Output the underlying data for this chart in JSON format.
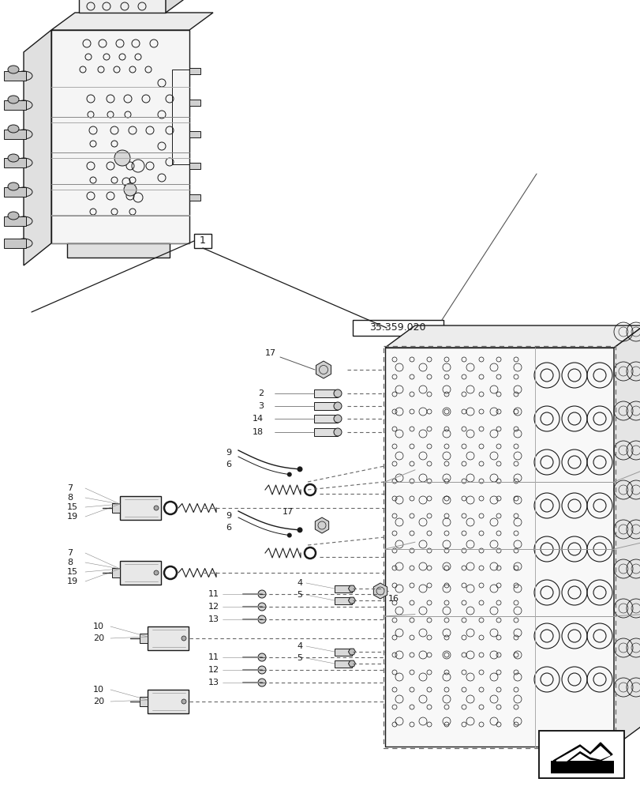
{
  "bg_color": "#ffffff",
  "line_color": "#1a1a1a",
  "fig_width": 8.12,
  "fig_height": 10.0,
  "dpi": 100,
  "label_fontsize": 8.0,
  "ref_label": "35.359.020"
}
